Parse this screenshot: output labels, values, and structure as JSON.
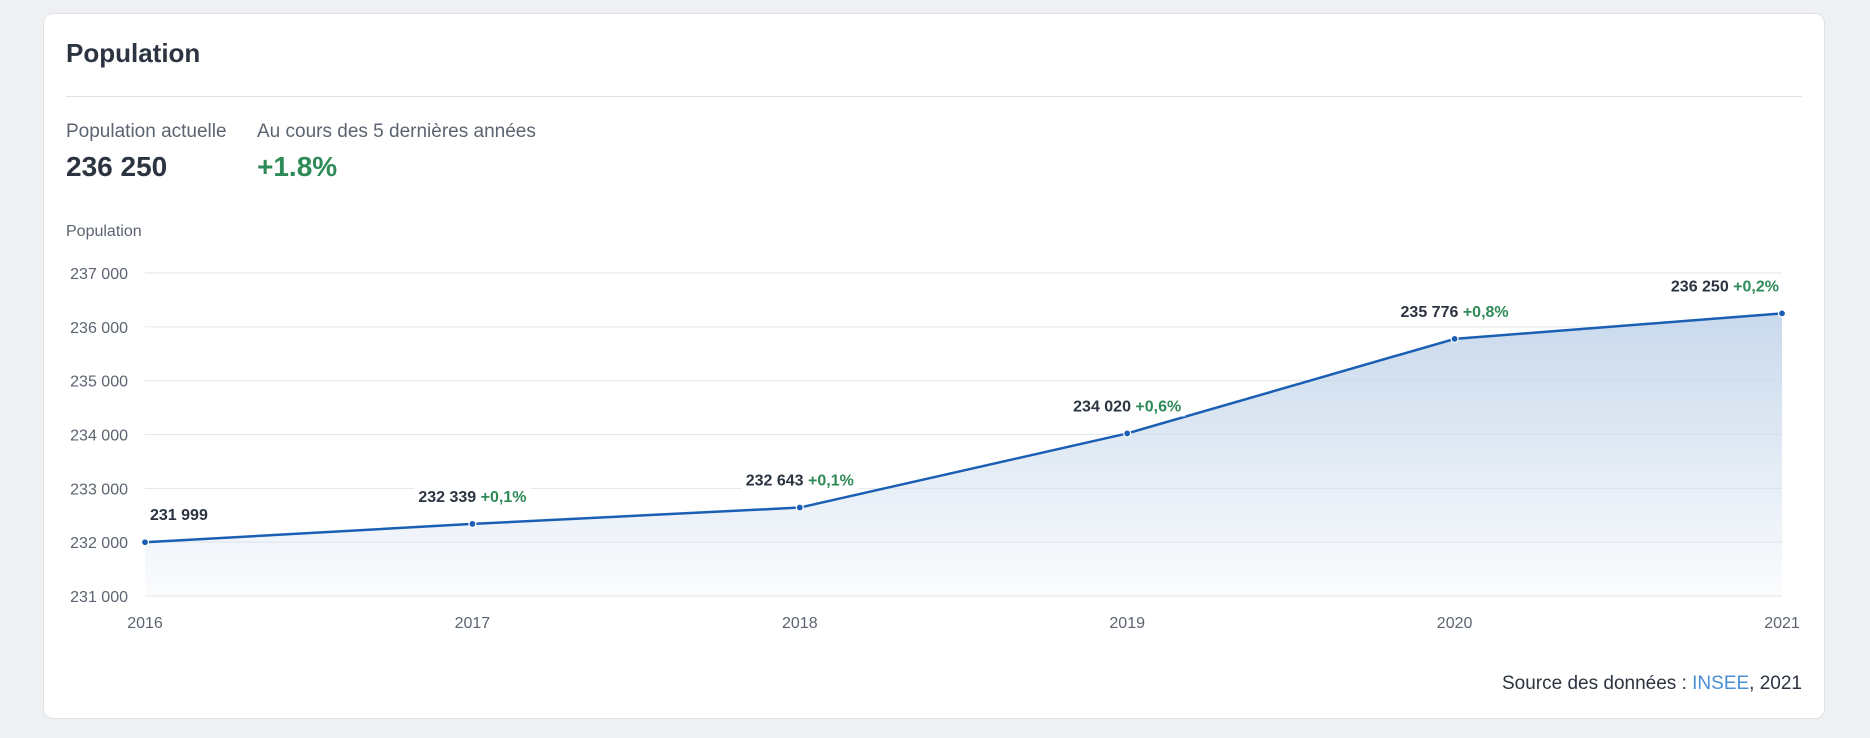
{
  "card": {
    "title": "Population"
  },
  "stats": {
    "current_label": "Population actuelle",
    "current_value": "236 250",
    "trend_label": "Au cours des 5 dernières années",
    "trend_value": "+1.8%"
  },
  "source": {
    "prefix": "Source des données :",
    "link_text": "INSEE",
    "suffix": ", 2021"
  },
  "colors": {
    "line": "#1a5fb4",
    "area_top": "#c9d9ec",
    "positive": "#2e8b57",
    "grid": "#e3e6ea"
  },
  "chart_data": {
    "type": "area",
    "title": "",
    "ylabel": "Population",
    "xlabel": "",
    "x": [
      "2016",
      "2017",
      "2018",
      "2019",
      "2020",
      "2021"
    ],
    "ylim": [
      231000,
      237000
    ],
    "y_ticks": [
      231000,
      232000,
      233000,
      234000,
      235000,
      236000,
      237000
    ],
    "y_tick_labels": [
      "231 000",
      "232 000",
      "233 000",
      "234 000",
      "235 000",
      "236 000",
      "237 000"
    ],
    "grid": true,
    "series": [
      {
        "values": [
          231999,
          232339,
          232643,
          234020,
          235776,
          236250
        ]
      }
    ],
    "data_labels": [
      "231 999",
      "232 339",
      "232 643",
      "234 020",
      "235 776",
      "236 250"
    ],
    "change_labels": [
      "",
      "+0,1%",
      "+0,1%",
      "+0,6%",
      "+0,8%",
      "+0,2%"
    ]
  }
}
